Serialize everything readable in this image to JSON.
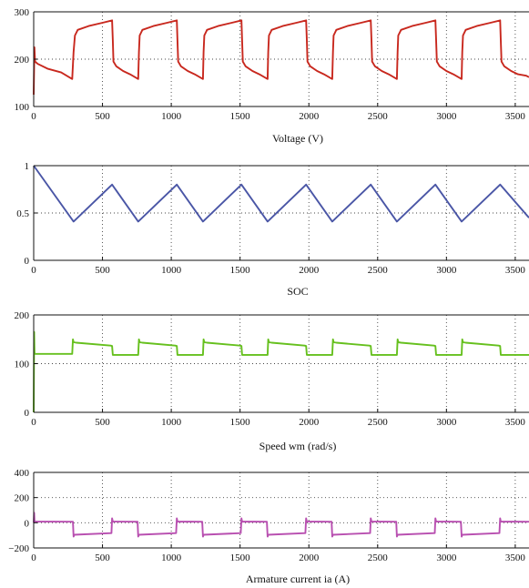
{
  "chart_data": [
    {
      "type": "line",
      "xlabel": "Voltage (V)",
      "ylabel": "",
      "xlim": [
        0,
        3600
      ],
      "ylim": [
        100,
        300
      ],
      "x_ticks": [
        "0",
        "500",
        "1000",
        "1500",
        "2000",
        "2500",
        "3000",
        "3500"
      ],
      "y_ticks": [
        "100",
        "200",
        "300"
      ],
      "grid": "dotted",
      "color": "#c8281e",
      "series": [
        {
          "x": [
            0,
            5,
            10,
            30,
            100,
            200,
            280,
            290,
            300,
            320,
            400,
            500,
            570,
            575,
            580,
            600,
            650,
            700,
            760,
            765,
            770,
            790,
            870,
            970,
            1040,
            1045,
            1050,
            1070,
            1120,
            1170,
            1230,
            1235,
            1240,
            1260,
            1340,
            1440,
            1510,
            1515,
            1520,
            1540,
            1590,
            1640,
            1700,
            1705,
            1710,
            1730,
            1810,
            1910,
            1980,
            1985,
            1990,
            2010,
            2060,
            2110,
            2170,
            2175,
            2180,
            2200,
            2280,
            2380,
            2450,
            2455,
            2460,
            2480,
            2530,
            2580,
            2640,
            2645,
            2650,
            2670,
            2750,
            2850,
            2920,
            2925,
            2930,
            2950,
            3000,
            3050,
            3110,
            3115,
            3120,
            3140,
            3220,
            3320,
            3390,
            3395,
            3400,
            3420,
            3470,
            3520,
            3580,
            3600
          ],
          "y": [
            125,
            225,
            195,
            190,
            180,
            172,
            158,
            215,
            250,
            262,
            270,
            277,
            282,
            240,
            195,
            185,
            175,
            168,
            158,
            215,
            250,
            262,
            270,
            277,
            282,
            240,
            195,
            185,
            175,
            168,
            158,
            215,
            250,
            262,
            270,
            277,
            282,
            240,
            195,
            185,
            175,
            168,
            158,
            215,
            250,
            262,
            270,
            277,
            282,
            240,
            195,
            185,
            175,
            168,
            158,
            215,
            250,
            262,
            270,
            277,
            282,
            240,
            195,
            185,
            175,
            168,
            158,
            215,
            250,
            262,
            270,
            277,
            282,
            240,
            195,
            185,
            175,
            168,
            158,
            215,
            250,
            262,
            270,
            277,
            282,
            240,
            195,
            185,
            175,
            168,
            165,
            162
          ]
        }
      ]
    },
    {
      "type": "line",
      "xlabel": "SOC",
      "ylabel": "",
      "xlim": [
        0,
        3600
      ],
      "ylim": [
        0,
        1
      ],
      "x_ticks": [
        "0",
        "500",
        "1000",
        "1500",
        "2000",
        "2500",
        "3000",
        "3500"
      ],
      "y_ticks": [
        "0",
        "0.5",
        "1"
      ],
      "grid": "dotted",
      "color": "#4a56a6",
      "series": [
        {
          "x": [
            0,
            290,
            570,
            760,
            1040,
            1230,
            1510,
            1700,
            1980,
            2170,
            2450,
            2640,
            2920,
            3110,
            3390,
            3600
          ],
          "y": [
            1.0,
            0.41,
            0.8,
            0.41,
            0.8,
            0.41,
            0.8,
            0.41,
            0.8,
            0.41,
            0.8,
            0.41,
            0.8,
            0.41,
            0.8,
            0.45
          ]
        }
      ]
    },
    {
      "type": "line",
      "xlabel": "Speed wm (rad/s)",
      "ylabel": "",
      "xlim": [
        0,
        3600
      ],
      "ylim": [
        0,
        200
      ],
      "x_ticks": [
        "0",
        "500",
        "1000",
        "1500",
        "2000",
        "2500",
        "3000",
        "3500"
      ],
      "y_ticks": [
        "0",
        "100",
        "200"
      ],
      "grid": "dotted",
      "color": "#66c01e",
      "series": [
        {
          "x": [
            0,
            3,
            6,
            10,
            280,
            285,
            290,
            310,
            560,
            570,
            575,
            760,
            765,
            770,
            790,
            1030,
            1040,
            1045,
            1230,
            1235,
            1240,
            1260,
            1500,
            1510,
            1515,
            1700,
            1705,
            1710,
            1730,
            1970,
            1980,
            1985,
            2170,
            2175,
            2180,
            2200,
            2440,
            2450,
            2455,
            2640,
            2645,
            2650,
            2670,
            2910,
            2920,
            2925,
            3110,
            3115,
            3120,
            3140,
            3380,
            3390,
            3395,
            3600
          ],
          "y": [
            0,
            165,
            122,
            120,
            120,
            150,
            144,
            143,
            137,
            136,
            118,
            118,
            150,
            144,
            143,
            137,
            136,
            118,
            118,
            150,
            144,
            143,
            137,
            136,
            118,
            118,
            150,
            144,
            143,
            137,
            136,
            118,
            118,
            150,
            144,
            143,
            137,
            136,
            118,
            118,
            150,
            144,
            143,
            137,
            136,
            118,
            118,
            150,
            144,
            143,
            137,
            136,
            118,
            118
          ]
        }
      ]
    },
    {
      "type": "line",
      "xlabel": "Armature current ia (A)",
      "ylabel": "",
      "xlim": [
        0,
        3600
      ],
      "ylim": [
        -200,
        400
      ],
      "x_ticks": [
        "0",
        "500",
        "1000",
        "1500",
        "2000",
        "2500",
        "3000",
        "3500"
      ],
      "y_ticks": [
        "400",
        "200",
        "0",
        "−200"
      ],
      "grid": "dotted",
      "color": "#b84fb0",
      "series": [
        {
          "x": [
            0,
            3,
            6,
            10,
            285,
            290,
            295,
            565,
            570,
            575,
            755,
            760,
            765,
            1035,
            1040,
            1045,
            1225,
            1230,
            1235,
            1505,
            1510,
            1515,
            1695,
            1700,
            1705,
            1975,
            1980,
            1985,
            2165,
            2170,
            2175,
            2445,
            2450,
            2455,
            2635,
            2640,
            2645,
            2915,
            2920,
            2925,
            3105,
            3110,
            3115,
            3385,
            3390,
            3395,
            3600
          ],
          "y": [
            0,
            80,
            15,
            10,
            8,
            -110,
            -95,
            -82,
            35,
            10,
            8,
            -110,
            -95,
            -82,
            35,
            10,
            8,
            -110,
            -95,
            -82,
            35,
            10,
            8,
            -110,
            -95,
            -82,
            35,
            10,
            8,
            -110,
            -95,
            -82,
            35,
            10,
            8,
            -110,
            -95,
            -82,
            35,
            10,
            8,
            -110,
            -95,
            -82,
            35,
            10,
            8
          ]
        }
      ]
    }
  ]
}
